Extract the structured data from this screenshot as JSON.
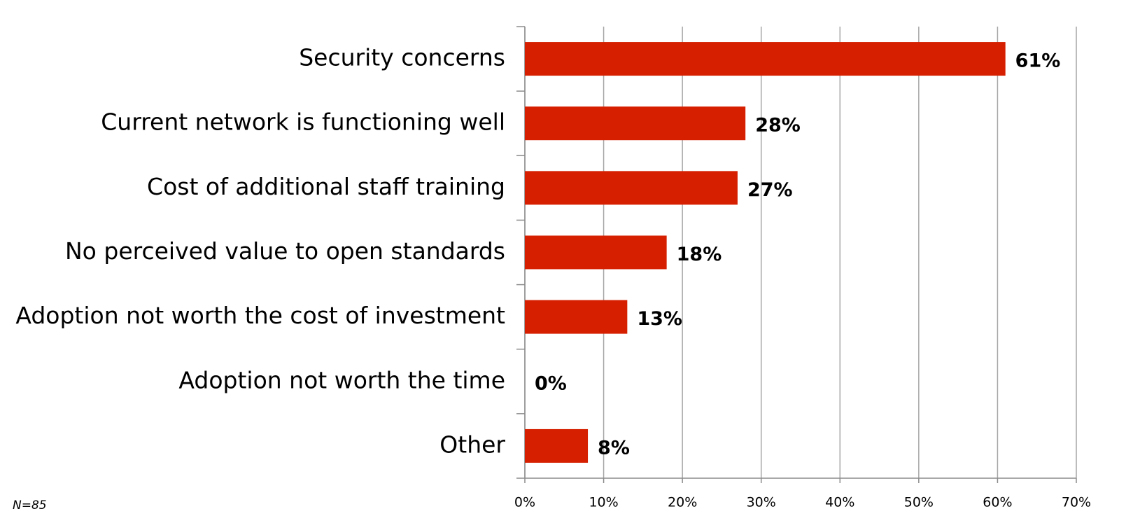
{
  "chart_data": {
    "type": "bar",
    "orientation": "horizontal",
    "categories": [
      "Security concerns",
      "Current network is functioning well",
      "Cost of additional staff training",
      "No perceived value to open standards",
      "Adoption not worth the cost of investment",
      "Adoption not worth the time",
      "Other"
    ],
    "values": [
      61,
      28,
      27,
      18,
      13,
      0,
      8
    ],
    "value_labels": [
      "61%",
      "28%",
      "27%",
      "18%",
      "13%",
      "0%",
      "8%"
    ],
    "color": "#d51f00",
    "xlim": [
      0,
      70
    ],
    "xticks": [
      {
        "value": 0,
        "label": "0%"
      },
      {
        "value": 10,
        "label": "10%"
      },
      {
        "value": 20,
        "label": "20%"
      },
      {
        "value": 30,
        "label": "30%"
      },
      {
        "value": 40,
        "label": "40%"
      },
      {
        "value": 50,
        "label": "50%"
      },
      {
        "value": 60,
        "label": "60%"
      },
      {
        "value": 70,
        "label": "70%"
      }
    ],
    "grid": true,
    "annotation": "N=85"
  }
}
